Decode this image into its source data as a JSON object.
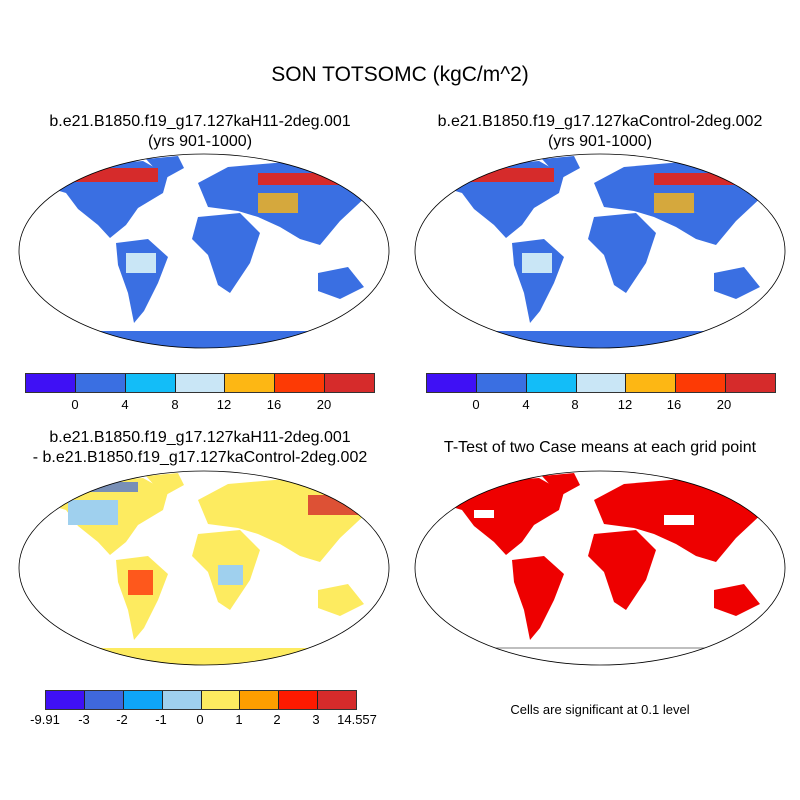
{
  "title": "SON TOTSOMC (kgC/m^2)",
  "panels": {
    "case1": {
      "line1": "b.e21.B1850.f19_g17.127kaH11-2deg.001",
      "line2": "(yrs 901-1000)"
    },
    "case2": {
      "line1": "b.e21.B1850.f19_g17.127kaControl-2deg.002",
      "line2": "(yrs 901-1000)"
    },
    "diff": {
      "line1": "b.e21.B1850.f19_g17.127kaH11-2deg.001",
      "line2": "- b.e21.B1850.f19_g17.127kaControl-2deg.002"
    },
    "ttest": {
      "line1": "T-Test of two Case means at each grid point",
      "note": "Cells are significant at 0.1 level"
    }
  },
  "colorbar_main": {
    "colors": [
      "#3f10f5",
      "#3a6fe2",
      "#13bdf8",
      "#c9e6f6",
      "#fdb714",
      "#fd3a05",
      "#d62b2b"
    ],
    "labels": [
      "0",
      "4",
      "8",
      "12",
      "16",
      "20"
    ]
  },
  "colorbar_diff": {
    "colors": [
      "#3f10f5",
      "#3f68dc",
      "#0fa5f8",
      "#9fd0ee",
      "#fdeb60",
      "#fd9e00",
      "#fd1a00",
      "#d52b2b"
    ],
    "labels": [
      "-9.91",
      "-3",
      "-2",
      "-1",
      "0",
      "1",
      "2",
      "3",
      "14.557"
    ]
  },
  "ttest_color": "#ee0000"
}
